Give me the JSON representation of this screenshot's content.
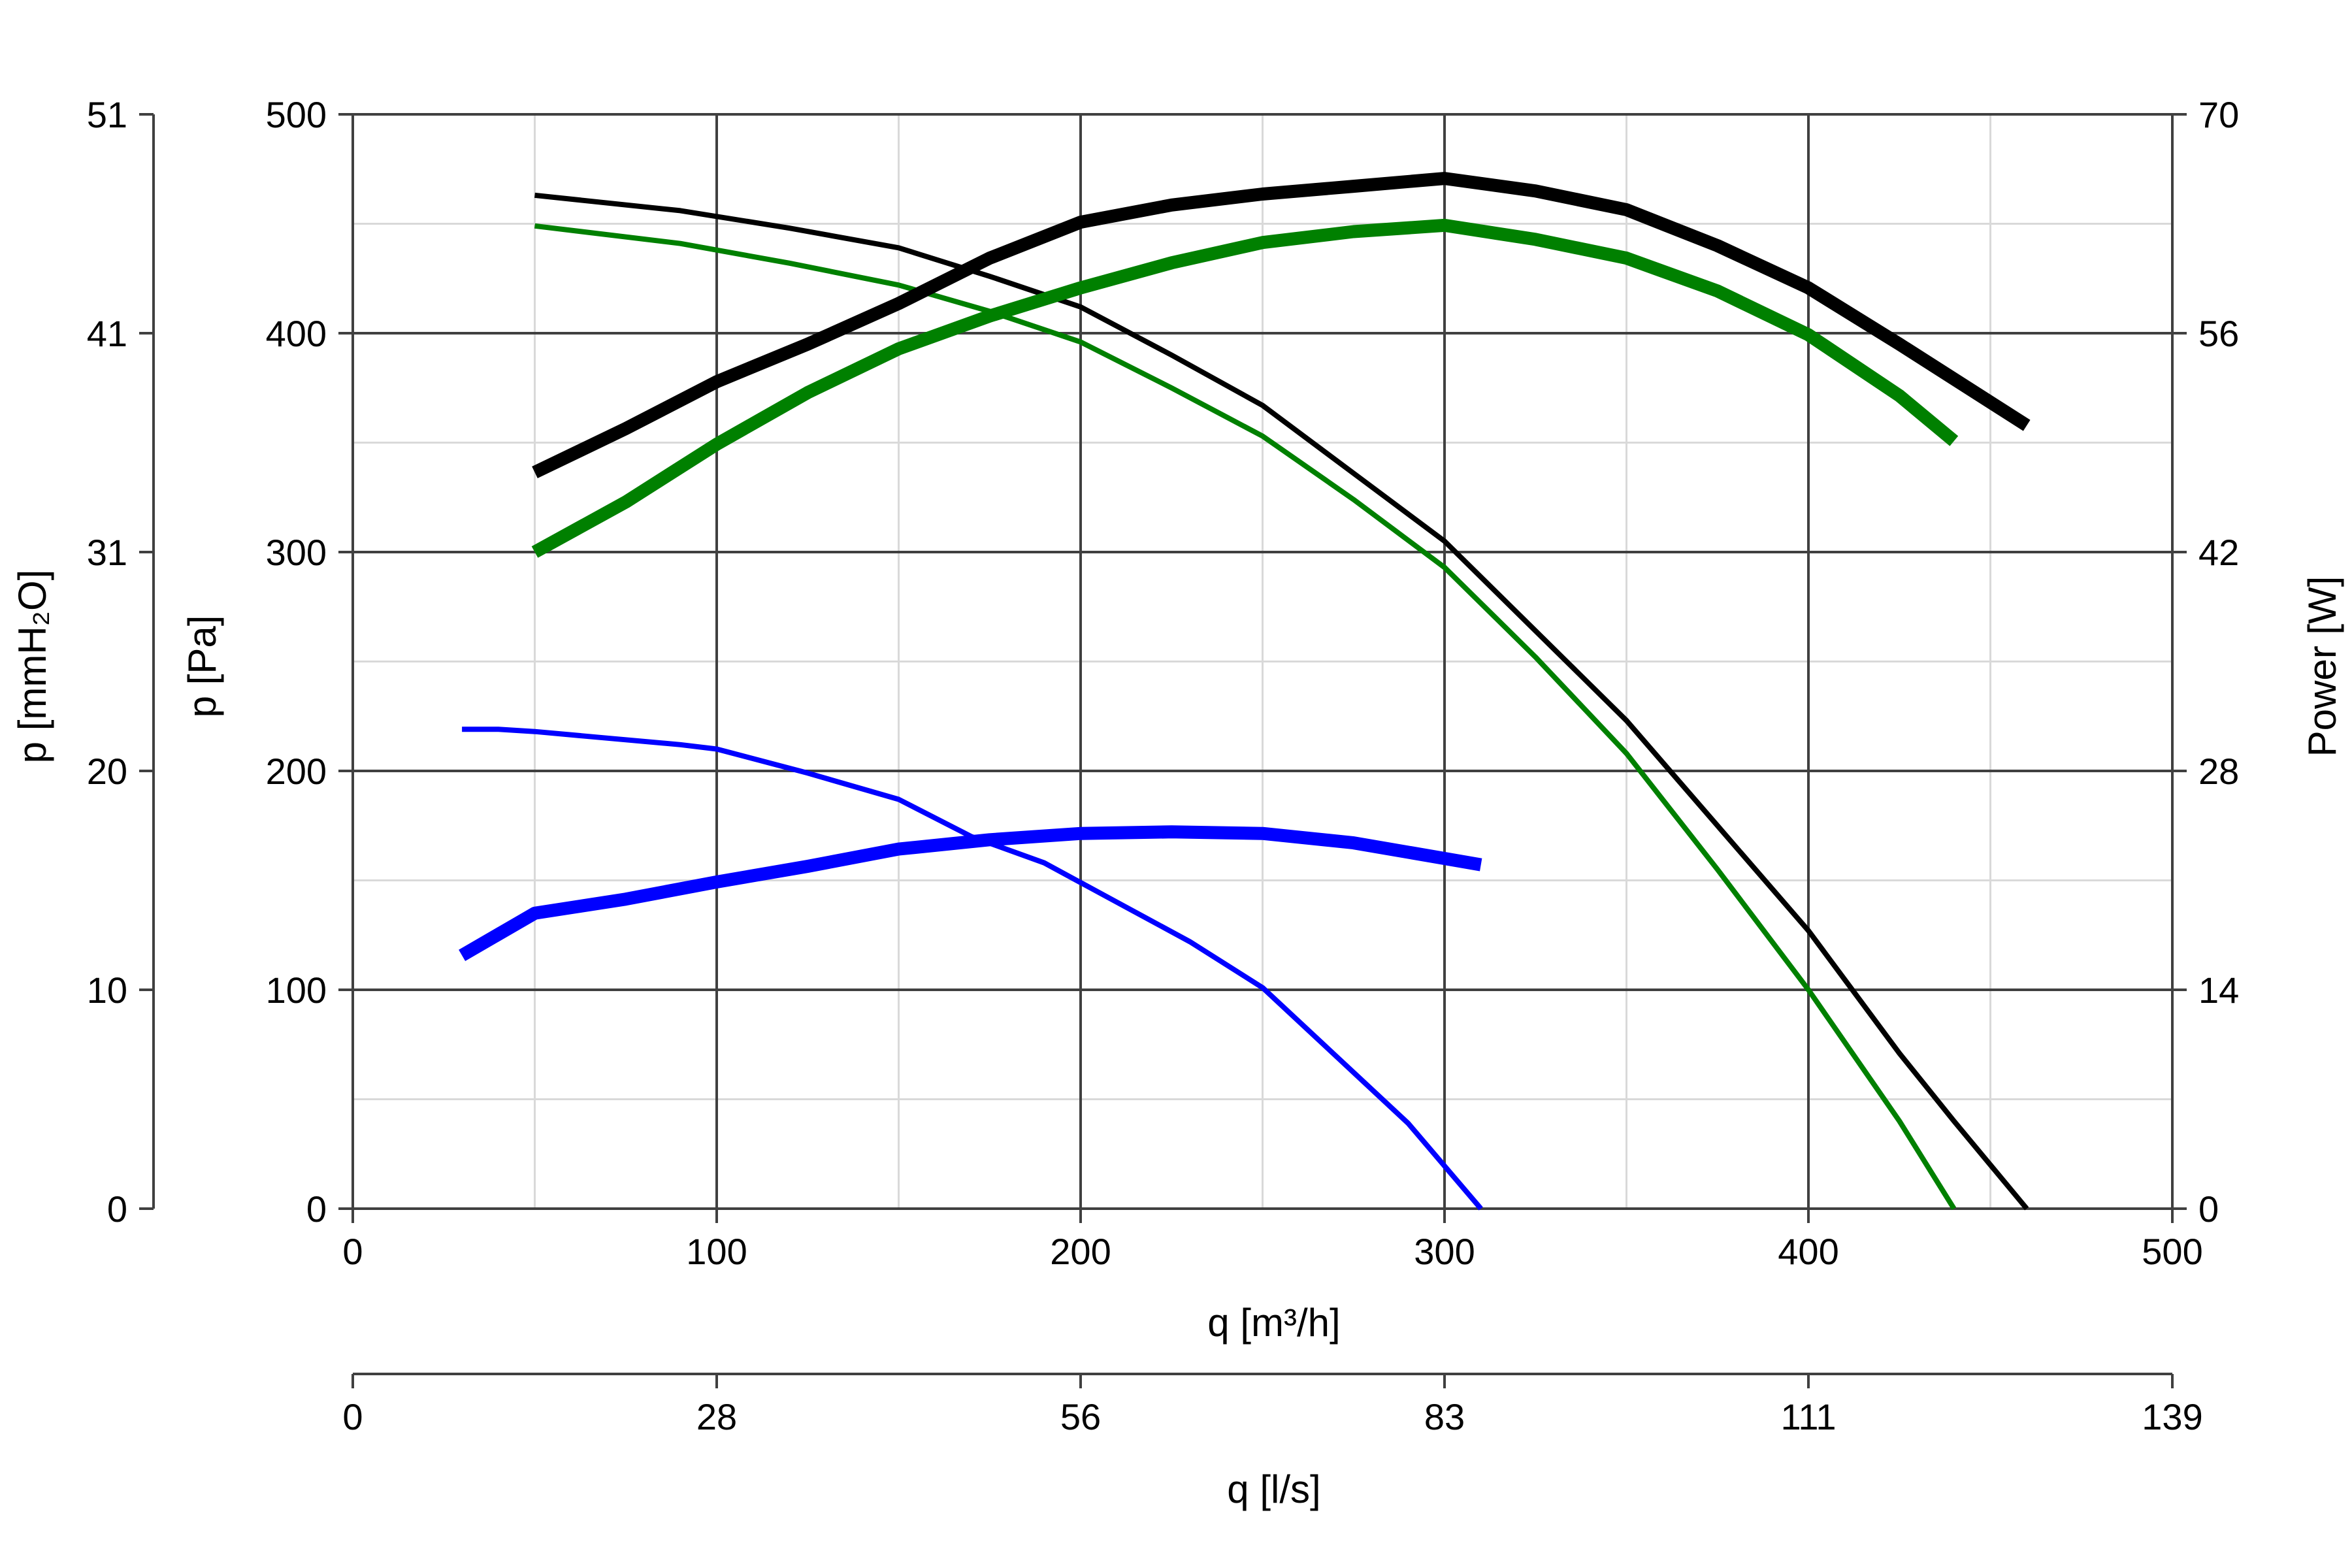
{
  "chart_data": {
    "type": "line",
    "xlabel": "q [m³/h]",
    "xlim": [
      0,
      500
    ],
    "xticks": [
      "0",
      "100",
      "200",
      "300",
      "400",
      "500"
    ],
    "x2label": "q [l/s]",
    "x2ticks": [
      "0",
      "28",
      "56",
      "83",
      "111",
      "139"
    ],
    "ylabel": "p [Pa]",
    "ylim": [
      0,
      500
    ],
    "yticks": [
      "0",
      "100",
      "200",
      "300",
      "400",
      "500"
    ],
    "y_outer_label": "p [mmH₂O]",
    "y_outer_ticks": [
      "0",
      "10",
      "20",
      "31",
      "41",
      "51"
    ],
    "y_right_label": "Power [W]",
    "y_right_lim": [
      0,
      70
    ],
    "y_right_ticks": [
      "0",
      "14",
      "28",
      "42",
      "56",
      "70"
    ],
    "grid": true,
    "series": [
      {
        "kind": "pressure",
        "axis": "left",
        "color": "#000000",
        "width": "thin",
        "x": [
          50,
          90,
          120,
          150,
          175,
          200,
          225,
          250,
          275,
          300,
          325,
          350,
          375,
          400,
          425,
          440,
          460
        ],
        "y": [
          463,
          456,
          448,
          439,
          426,
          412,
          390,
          367,
          336,
          305,
          264,
          223,
          175,
          127,
          71,
          40,
          0
        ]
      },
      {
        "kind": "pressure",
        "axis": "left",
        "color": "#008000",
        "width": "thin",
        "x": [
          50,
          90,
          120,
          150,
          175,
          200,
          225,
          250,
          275,
          300,
          325,
          350,
          375,
          400,
          425,
          440
        ],
        "y": [
          449,
          441,
          432,
          422,
          410,
          396,
          375,
          353,
          324,
          293,
          252,
          208,
          155,
          100,
          40,
          0
        ]
      },
      {
        "kind": "pressure",
        "axis": "left",
        "color": "#0000ff",
        "width": "thin",
        "x": [
          30,
          40,
          50,
          70,
          90,
          100,
          125,
          150,
          170,
          190,
          210,
          230,
          250,
          270,
          290,
          310
        ],
        "y": [
          219,
          219,
          218,
          215,
          212,
          210,
          199,
          187,
          170,
          158,
          140,
          122,
          101,
          70,
          39,
          0
        ]
      },
      {
        "kind": "power",
        "axis": "right",
        "color": "#000000",
        "width": "thick",
        "x": [
          50,
          75,
          100,
          125,
          150,
          175,
          200,
          225,
          250,
          275,
          300,
          325,
          350,
          375,
          400,
          425,
          460
        ],
        "y": [
          47.1,
          49.9,
          52.9,
          55.3,
          57.9,
          60.8,
          63.1,
          64.2,
          64.9,
          65.4,
          65.9,
          65.1,
          63.9,
          61.6,
          58.9,
          55.3,
          50.1
        ]
      },
      {
        "kind": "power",
        "axis": "right",
        "color": "#008000",
        "width": "thick",
        "x": [
          50,
          75,
          100,
          125,
          150,
          175,
          200,
          225,
          250,
          275,
          300,
          325,
          350,
          375,
          400,
          425,
          440
        ],
        "y": [
          42.0,
          45.2,
          48.9,
          52.2,
          55.0,
          57.1,
          58.9,
          60.5,
          61.8,
          62.5,
          62.9,
          62.0,
          60.8,
          58.7,
          55.9,
          52.0,
          49.1
        ]
      },
      {
        "kind": "power",
        "axis": "right",
        "color": "#0000ff",
        "width": "thick",
        "x": [
          30,
          50,
          75,
          100,
          125,
          150,
          175,
          200,
          225,
          250,
          275,
          300,
          310
        ],
        "y": [
          16.2,
          18.9,
          19.8,
          20.9,
          21.9,
          23.0,
          23.6,
          24.0,
          24.1,
          24.0,
          23.4,
          22.4,
          22.0
        ]
      }
    ]
  }
}
